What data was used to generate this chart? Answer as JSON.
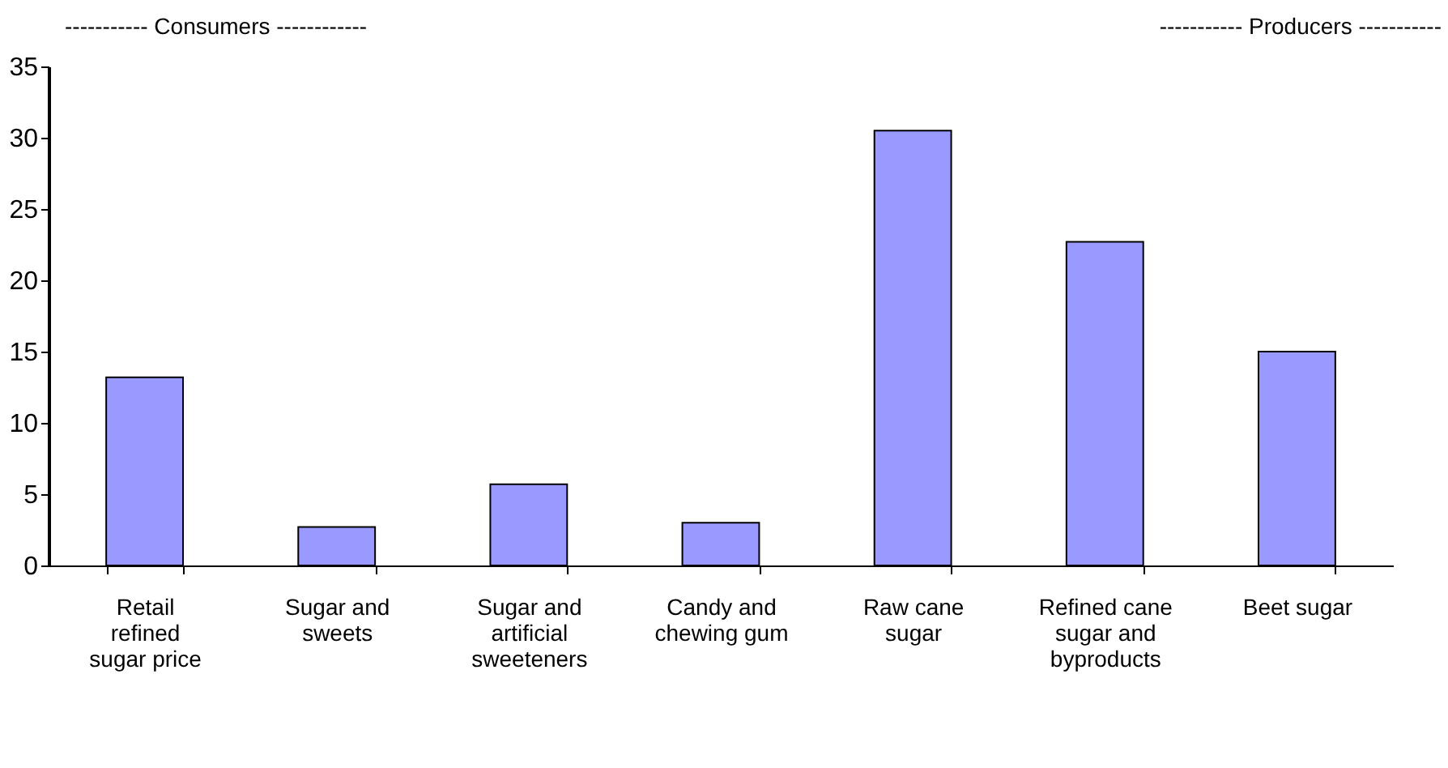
{
  "chart_data": {
    "type": "bar",
    "categories": [
      "Retail refined sugar price",
      "Sugar and sweets",
      "Sugar and artificial sweeteners",
      "Candy and chewing gum",
      "Raw cane sugar",
      "Refined cane sugar and byproducts",
      "Beet sugar"
    ],
    "values": [
      13.2,
      2.7,
      5.7,
      3.0,
      30.5,
      22.7,
      15.0
    ],
    "color": "#9999ff",
    "ylim": [
      0,
      35
    ],
    "yticks": [
      0,
      5,
      10,
      15,
      20,
      25,
      30,
      35
    ],
    "annotations": [
      "----------- Consumers ------------",
      "----------- Producers -----------"
    ]
  }
}
